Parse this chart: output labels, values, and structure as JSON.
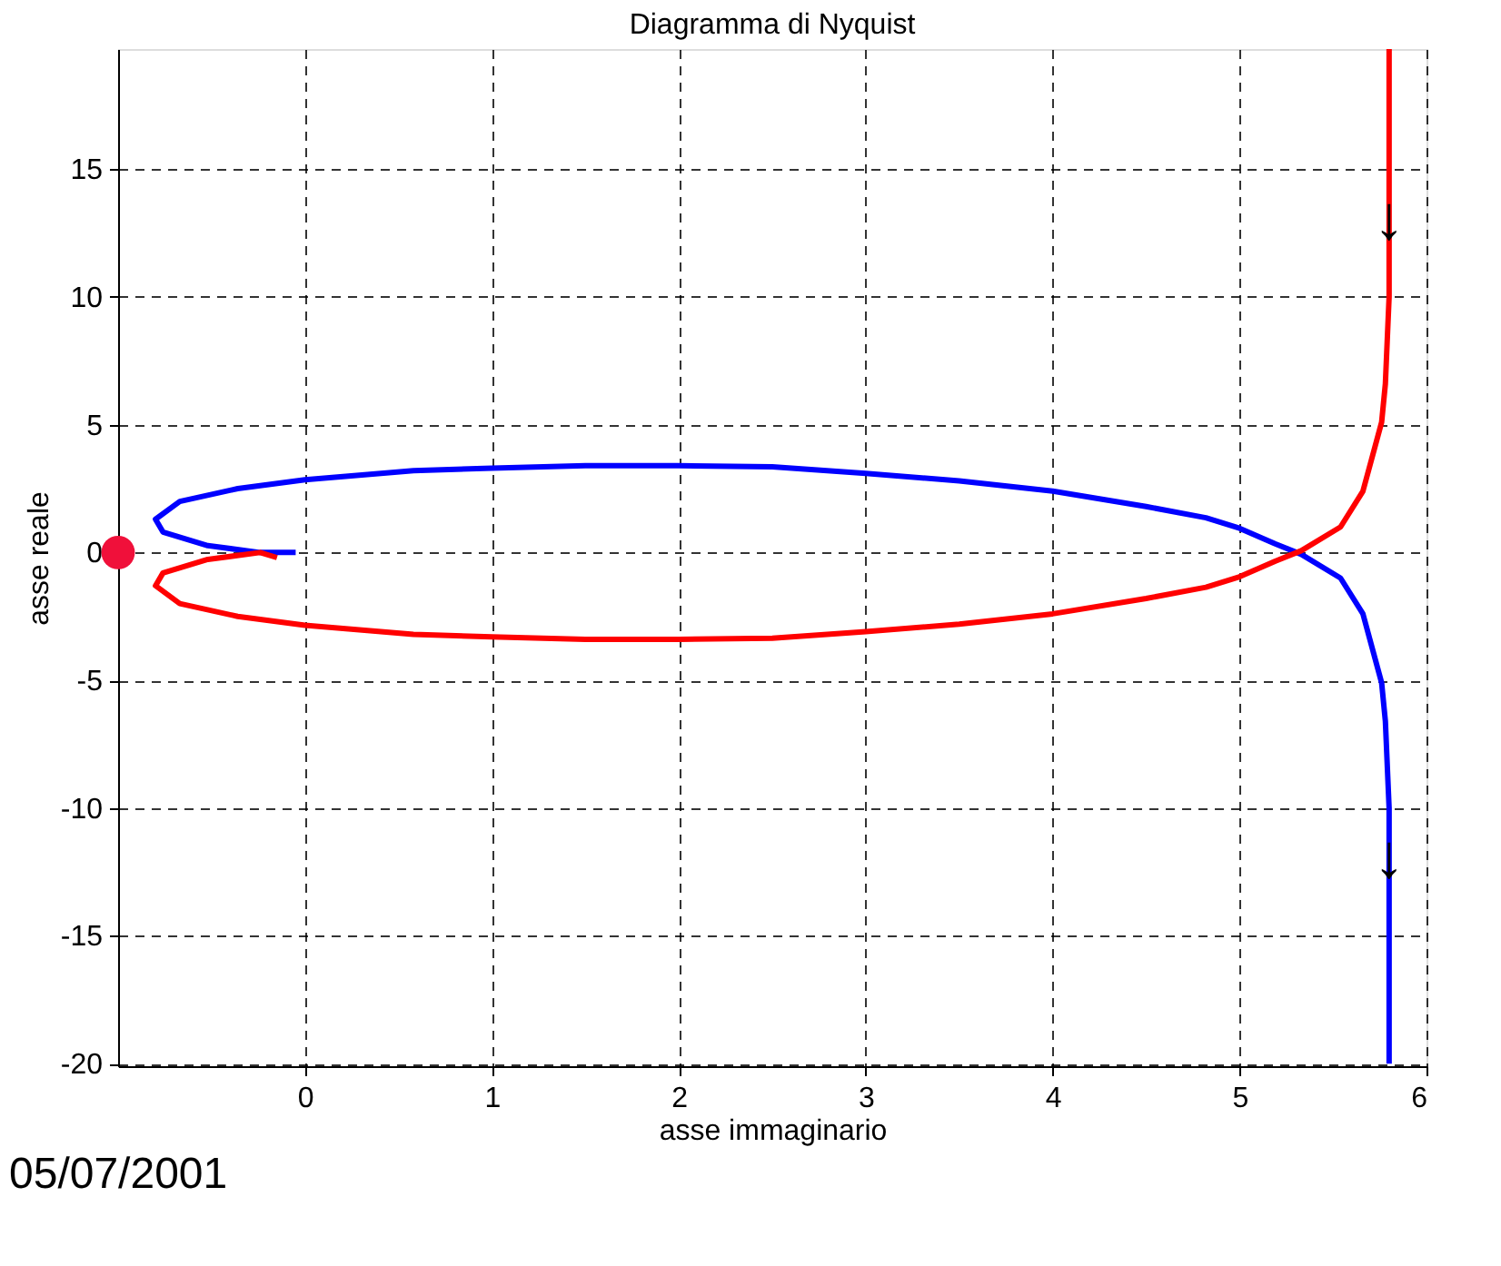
{
  "chart_data": {
    "type": "line",
    "title": "Diagramma di Nyquist",
    "xlabel": "asse immaginario",
    "ylabel": "asse reale",
    "xlim": [
      -1,
      6
    ],
    "xticks": [
      0,
      1,
      2,
      3,
      4,
      5,
      6
    ],
    "ylim": [
      -20.1,
      19.7
    ],
    "yticks": [
      -20,
      -15,
      -10,
      -5,
      0,
      5,
      10,
      15
    ],
    "grid": true,
    "series": [
      {
        "color": "#0000ff",
        "x": [
          -0.05,
          -0.24,
          -0.52,
          -0.76,
          -0.8,
          -0.67,
          -0.36,
          0,
          0.58,
          1.0,
          1.5,
          2.0,
          2.5,
          3.0,
          3.5,
          4.0,
          4.5,
          4.82,
          5.0,
          5.19,
          5.33,
          5.54,
          5.66,
          5.76,
          5.78,
          5.8,
          5.8,
          5.8
        ],
        "values": [
          0,
          0.0,
          0.27,
          0.8,
          1.3,
          2.0,
          2.5,
          2.85,
          3.2,
          3.3,
          3.4,
          3.4,
          3.35,
          3.1,
          2.8,
          2.4,
          1.8,
          1.36,
          0.95,
          0.34,
          -0.07,
          -1.0,
          -2.4,
          -5.1,
          -6.6,
          -10,
          -15,
          -20
        ]
      },
      {
        "color": "#ff0000",
        "x": [
          -0.15,
          -0.24,
          -0.52,
          -0.76,
          -0.8,
          -0.67,
          -0.36,
          0,
          0.58,
          1.0,
          1.5,
          2.0,
          2.5,
          3.0,
          3.5,
          4.0,
          4.5,
          4.82,
          5.0,
          5.19,
          5.33,
          5.54,
          5.66,
          5.76,
          5.78,
          5.8,
          5.8,
          5.8
        ],
        "values": [
          -0.2,
          0.0,
          -0.27,
          -0.8,
          -1.3,
          -2.0,
          -2.5,
          -2.85,
          -3.2,
          -3.3,
          -3.4,
          -3.4,
          -3.35,
          -3.1,
          -2.8,
          -2.4,
          -1.8,
          -1.36,
          -0.95,
          -0.34,
          0.07,
          1.0,
          2.4,
          5.1,
          6.6,
          10,
          15,
          19.7
        ]
      },
      {
        "type": "scatter",
        "color": "#f0103a",
        "marker": "circle",
        "x": [
          -1
        ],
        "values": [
          0
        ]
      }
    ],
    "annotations": [
      {
        "text": "↓",
        "x": 5.8,
        "y": 13
      },
      {
        "text": "↓",
        "x": 5.8,
        "y": -12
      },
      "05/07/2001"
    ]
  }
}
